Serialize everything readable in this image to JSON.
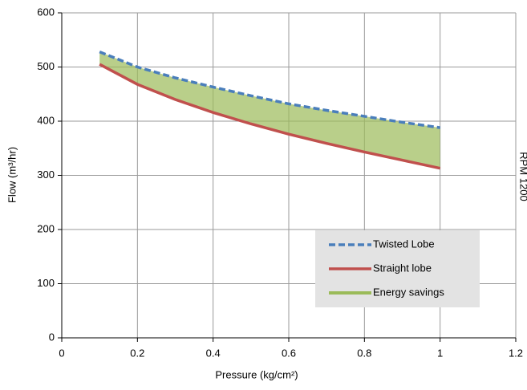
{
  "chart_data": {
    "type": "line",
    "xlabel": "Pressure (kg/cm²)",
    "ylabel": "Flow (m³/hr)",
    "annotation": "RPM 1200",
    "x": [
      0.1,
      0.2,
      0.3,
      0.4,
      0.5,
      0.6,
      0.7,
      0.8,
      0.9,
      1.0
    ],
    "series": [
      {
        "name": "Twisted Lobe",
        "color": "#4a7ebb",
        "values": [
          528,
          500,
          480,
          463,
          447,
          432,
          420,
          409,
          398,
          388
        ]
      },
      {
        "name": "Straight lobe",
        "color": "#c0504d",
        "values": [
          505,
          468,
          440,
          416,
          395,
          376,
          359,
          343,
          328,
          313
        ]
      },
      {
        "name": "Energy savings",
        "color": "#9bbb59"
      }
    ],
    "xlim": [
      0,
      1.2
    ],
    "xticks": [
      0,
      0.2,
      0.4,
      0.6,
      0.8,
      1,
      1.2
    ],
    "ylim": [
      0,
      600
    ],
    "yticks": [
      0,
      100,
      200,
      300,
      400,
      500,
      600
    ],
    "grid": true,
    "legend": "lower right"
  }
}
